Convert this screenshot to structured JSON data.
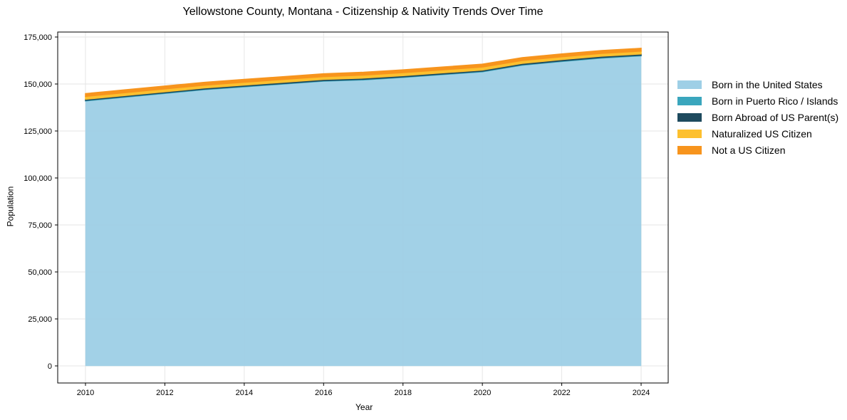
{
  "chart_data": {
    "type": "area",
    "stacked": true,
    "title": "Yellowstone County, Montana - Citizenship & Nativity Trends Over Time",
    "xlabel": "Year",
    "ylabel": "Population",
    "x": [
      2010,
      2011,
      2012,
      2013,
      2014,
      2015,
      2016,
      2017,
      2018,
      2019,
      2020,
      2021,
      2022,
      2023,
      2024
    ],
    "xticks": [
      "2010",
      "2012",
      "2014",
      "2016",
      "2018",
      "2020",
      "2022",
      "2024"
    ],
    "yticks": [
      "0",
      "25,000",
      "50,000",
      "75,000",
      "100,000",
      "125,000",
      "150,000",
      "175,000"
    ],
    "ylim": [
      -9000,
      177500
    ],
    "grid": true,
    "legend_position": "right-outside",
    "series": [
      {
        "name": "Born in the United States",
        "color": "#9ecfe6",
        "values": [
          141000,
          143000,
          145000,
          147000,
          148500,
          150000,
          151500,
          152200,
          153500,
          155000,
          156500,
          160000,
          162000,
          163800,
          165000
        ]
      },
      {
        "name": "Born in Puerto Rico / Islands",
        "color": "#3aa6bd",
        "values": [
          300,
          300,
          300,
          300,
          300,
          300,
          300,
          300,
          300,
          300,
          300,
          300,
          300,
          300,
          300
        ]
      },
      {
        "name": "Born Abroad of US Parent(s)",
        "color": "#1e4a5e",
        "values": [
          600,
          600,
          600,
          600,
          650,
          650,
          650,
          650,
          650,
          650,
          650,
          700,
          700,
          700,
          700
        ]
      },
      {
        "name": "Naturalized US Citizen",
        "color": "#fdc02f",
        "values": [
          1500,
          1500,
          1500,
          1500,
          1500,
          1500,
          1500,
          1600,
          1600,
          1600,
          1600,
          1500,
          1500,
          1500,
          1500
        ]
      },
      {
        "name": "Not a US Citizen",
        "color": "#f7941d",
        "values": [
          1500,
          1500,
          1500,
          1500,
          1500,
          1500,
          1500,
          1500,
          1500,
          1500,
          1500,
          1500,
          1500,
          1500,
          1500
        ]
      }
    ]
  }
}
